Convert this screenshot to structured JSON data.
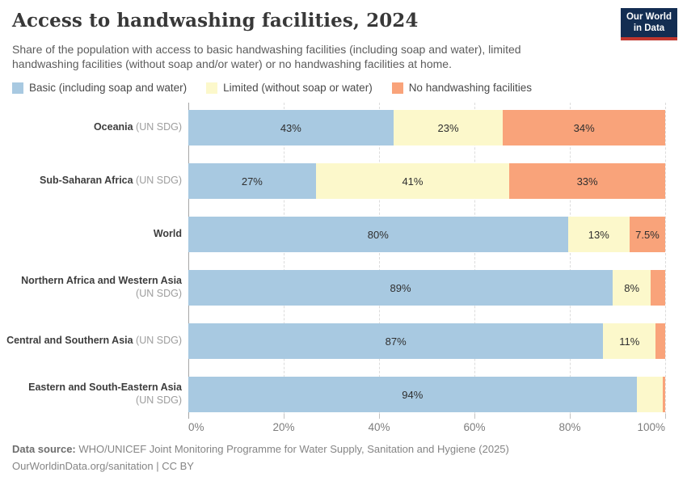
{
  "header": {
    "title": "Access to handwashing facilities, 2024",
    "subtitle": "Share of the population with access to basic handwashing facilities (including soap and water), limited handwashing facilities (without soap and/or water) or no handwashing facilities at home.",
    "logo": {
      "line1": "Our World",
      "line2": "in Data"
    }
  },
  "legend": [
    {
      "label": "Basic (including soap and water)",
      "color": "#a8c9e1"
    },
    {
      "label": "Limited (without soap or water)",
      "color": "#fcf8cb"
    },
    {
      "label": "No handwashing facilities",
      "color": "#f9a37a"
    }
  ],
  "chart_data": {
    "type": "bar",
    "orientation": "horizontal",
    "stacked": true,
    "normalized": true,
    "unit": "%",
    "xlim": [
      0,
      100
    ],
    "grid": "dashed-vertical",
    "series_names": [
      "Basic (including soap and water)",
      "Limited (without soap or water)",
      "No handwashing facilities"
    ],
    "ticks": [
      {
        "label": "0%",
        "pos": 0
      },
      {
        "label": "20%",
        "pos": 20
      },
      {
        "label": "40%",
        "pos": 40
      },
      {
        "label": "60%",
        "pos": 60
      },
      {
        "label": "80%",
        "pos": 80
      },
      {
        "label": "100%",
        "pos": 100
      }
    ],
    "rows": [
      {
        "name": "Oceania",
        "qualifier": "(UN SDG)",
        "wrap": false,
        "values": [
          43,
          23,
          34
        ],
        "labels": [
          "43%",
          "23%",
          "34%"
        ]
      },
      {
        "name": "Sub-Saharan Africa",
        "qualifier": "(UN SDG)",
        "wrap": false,
        "values": [
          27,
          41,
          33
        ],
        "labels": [
          "27%",
          "41%",
          "33%"
        ]
      },
      {
        "name": "World",
        "qualifier": "",
        "wrap": false,
        "values": [
          80,
          13,
          7.5
        ],
        "labels": [
          "80%",
          "13%",
          "7.5%"
        ]
      },
      {
        "name": "Northern Africa and Western Asia",
        "qualifier": "(UN SDG)",
        "wrap": true,
        "values": [
          89,
          8,
          3
        ],
        "labels": [
          "89%",
          "8%",
          ""
        ]
      },
      {
        "name": "Central and Southern Asia",
        "qualifier": "(UN SDG)",
        "wrap": false,
        "values": [
          87,
          11,
          2
        ],
        "labels": [
          "87%",
          "11%",
          ""
        ]
      },
      {
        "name": "Eastern and South-Eastern Asia",
        "qualifier": "(UN SDG)",
        "wrap": true,
        "values": [
          94,
          5.5,
          0.5
        ],
        "labels": [
          "94%",
          "",
          ""
        ]
      }
    ]
  },
  "footer": {
    "datasource_label": "Data source:",
    "datasource_text": " WHO/UNICEF Joint Monitoring Programme for Water Supply, Sanitation and Hygiene (2025)",
    "link": "OurWorldinData.org/sanitation",
    "license": " | CC BY"
  }
}
